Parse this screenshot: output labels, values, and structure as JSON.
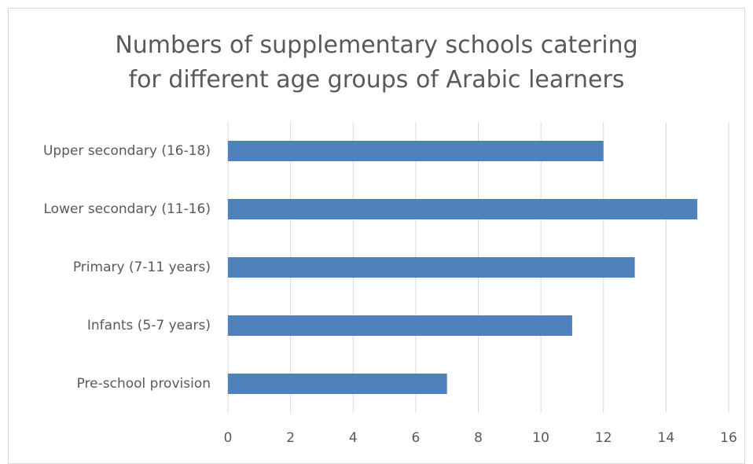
{
  "chart_data": {
    "type": "bar",
    "orientation": "horizontal",
    "title": "Numbers of supplementary schools catering for different age groups of Arabic learners",
    "categories": [
      "Upper secondary (16-18)",
      "Lower secondary (11-16)",
      "Primary (7-11 years)",
      "Infants (5-7 years)",
      "Pre-school provision"
    ],
    "values": [
      12,
      15,
      13,
      11,
      7
    ],
    "color": "#4f81bd",
    "xlim": [
      0,
      16
    ],
    "xticks": [
      0,
      2,
      4,
      6,
      8,
      10,
      12,
      14,
      16
    ],
    "grid": true
  }
}
